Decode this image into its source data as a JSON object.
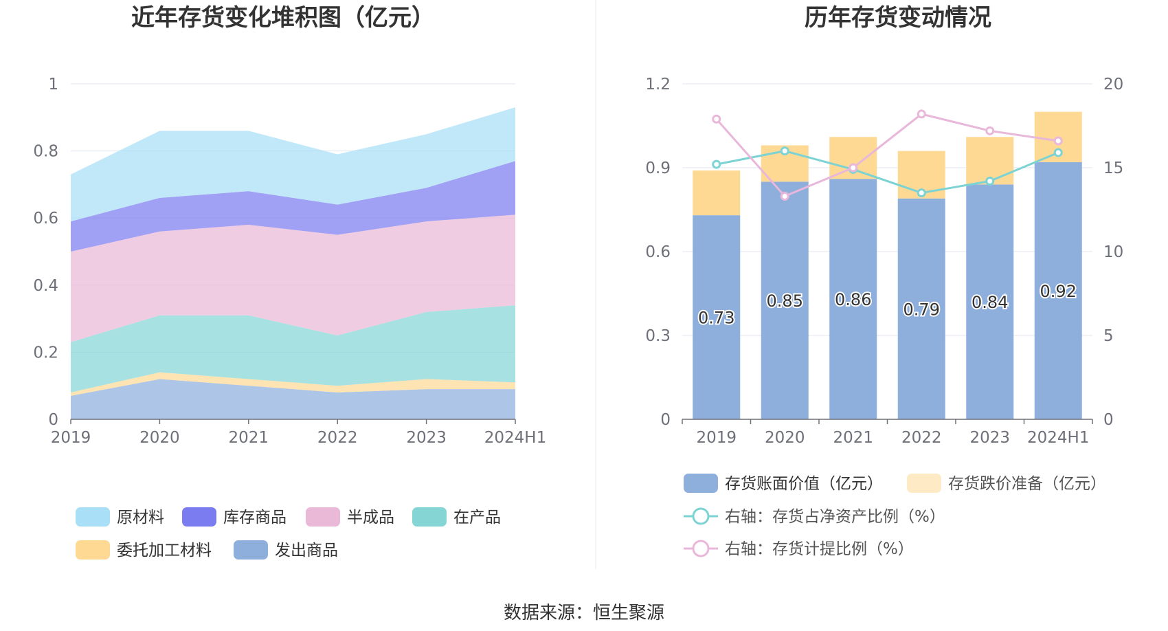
{
  "source": "数据来源：恒生聚源",
  "chart_data": [
    {
      "type": "area",
      "stacked": true,
      "title": "近年存货变化堆积图（亿元）",
      "categories": [
        "2019",
        "2020",
        "2021",
        "2022",
        "2023",
        "2024H1"
      ],
      "ylim": [
        0,
        1
      ],
      "yticks": [
        "0",
        "0.2",
        "0.4",
        "0.6",
        "0.8",
        "1"
      ],
      "yticks_values": [
        0,
        0.2,
        0.4,
        0.6,
        0.8,
        1
      ],
      "legend_position": "bottom",
      "series": [
        {
          "name": "发出商品",
          "color": "#8eaedc",
          "values": [
            0.07,
            0.12,
            0.1,
            0.08,
            0.09,
            0.09
          ]
        },
        {
          "name": "委托加工材料",
          "color": "#fdd994",
          "values": [
            0.01,
            0.02,
            0.02,
            0.02,
            0.03,
            0.02
          ]
        },
        {
          "name": "在产品",
          "color": "#86d5d5",
          "values": [
            0.15,
            0.17,
            0.19,
            0.15,
            0.2,
            0.23
          ]
        },
        {
          "name": "半成品",
          "color": "#eab9d7",
          "values": [
            0.27,
            0.25,
            0.27,
            0.3,
            0.27,
            0.27
          ]
        },
        {
          "name": "库存商品",
          "color": "#7b7cf0",
          "values": [
            0.09,
            0.1,
            0.1,
            0.09,
            0.1,
            0.16
          ]
        },
        {
          "name": "原材料",
          "color": "#a9dff7",
          "values": [
            0.14,
            0.2,
            0.18,
            0.15,
            0.16,
            0.16
          ]
        }
      ],
      "legend_order": [
        "原材料",
        "库存商品",
        "半成品",
        "在产品",
        "委托加工材料",
        "发出商品"
      ]
    },
    {
      "type": "bar",
      "stacked": true,
      "title": "历年存货变动情况",
      "categories": [
        "2019",
        "2020",
        "2021",
        "2022",
        "2023",
        "2024H1"
      ],
      "ylim": [
        0,
        1.2
      ],
      "yticks": [
        "0",
        "0.3",
        "0.6",
        "0.9",
        "1.2"
      ],
      "yticks_values": [
        0,
        0.3,
        0.6,
        0.9,
        1.2
      ],
      "y2lim": [
        0,
        20
      ],
      "y2ticks": [
        "0",
        "5",
        "10",
        "15",
        "20"
      ],
      "y2ticks_values": [
        0,
        5,
        10,
        15,
        20
      ],
      "legend_position": "bottom",
      "bar_series": [
        {
          "name": "存货账面价值（亿元）",
          "color": "#8eaedc",
          "values": [
            0.73,
            0.85,
            0.86,
            0.79,
            0.84,
            0.92
          ],
          "labels": [
            "0.73",
            "0.85",
            "0.86",
            "0.79",
            "0.84",
            "0.92"
          ]
        },
        {
          "name": "存货跌价准备（亿元）",
          "color": "#fdd994",
          "values": [
            0.16,
            0.13,
            0.15,
            0.17,
            0.17,
            0.18
          ]
        }
      ],
      "line_series": [
        {
          "name": "右轴：存货占净资产比例（%）",
          "color": "#7dd3d3",
          "values": [
            15.2,
            16.0,
            14.9,
            13.5,
            14.2,
            15.9
          ]
        },
        {
          "name": "右轴：存货计提比例（%）",
          "color": "#e8b7d9",
          "values": [
            17.9,
            13.3,
            15.0,
            18.2,
            17.2,
            16.6
          ]
        }
      ]
    }
  ]
}
